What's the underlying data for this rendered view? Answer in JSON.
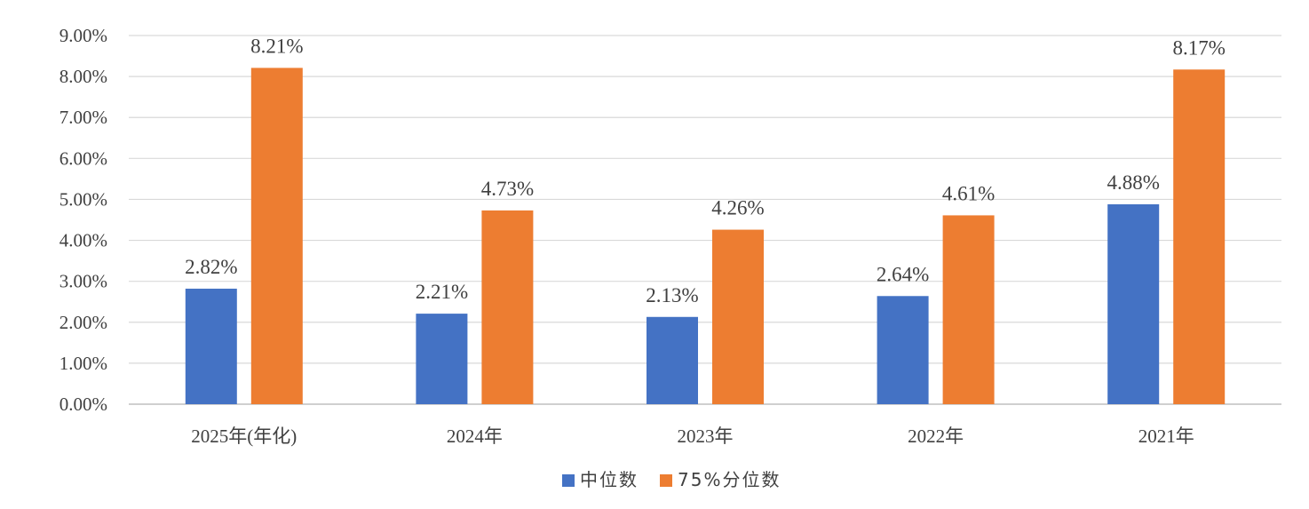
{
  "chart_data": {
    "type": "bar",
    "categories": [
      "2025年(年化)",
      "2024年",
      "2023年",
      "2022年",
      "2021年"
    ],
    "series": [
      {
        "name": "中位数",
        "values": [
          2.82,
          2.21,
          2.13,
          2.64,
          4.88
        ],
        "labels": [
          "2.82%",
          "2.21%",
          "2.13%",
          "2.64%",
          "4.88%"
        ],
        "color": "#4472C4"
      },
      {
        "name": "75%分位数",
        "values": [
          8.21,
          4.73,
          4.26,
          4.61,
          8.17
        ],
        "labels": [
          "8.21%",
          "4.73%",
          "4.26%",
          "4.61%",
          "8.17%"
        ],
        "color": "#ED7D31"
      }
    ],
    "y_ticks": [
      "0.00%",
      "1.00%",
      "2.00%",
      "3.00%",
      "4.00%",
      "5.00%",
      "6.00%",
      "7.00%",
      "8.00%",
      "9.00%"
    ],
    "ylim": [
      0,
      9
    ],
    "grid": true,
    "legend_position": "bottom"
  }
}
